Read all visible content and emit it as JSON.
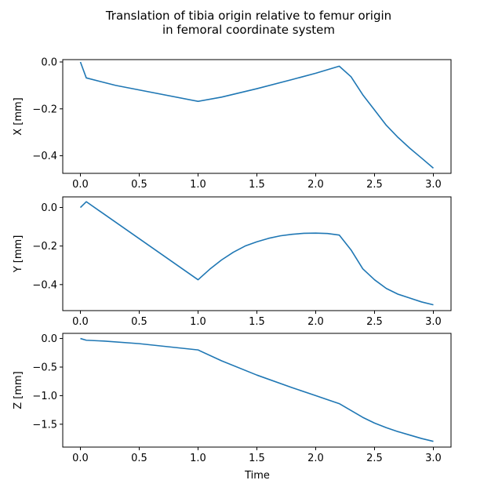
{
  "figure": {
    "title_line1": "Translation of tibia origin relative to femur origin",
    "title_line2": "in femoral coordinate system",
    "xlabel": "Time"
  },
  "chart_data": [
    {
      "type": "line",
      "ylabel": "X [mm]",
      "xlim": [
        -0.15,
        3.15
      ],
      "ylim": [
        -0.475,
        0.01
      ],
      "xticks": [
        0.0,
        0.5,
        1.0,
        1.5,
        2.0,
        2.5,
        3.0
      ],
      "xtick_labels": [
        "0.0",
        "0.5",
        "1.0",
        "1.5",
        "2.0",
        "2.5",
        "3.0"
      ],
      "yticks": [
        0.0,
        -0.2,
        -0.4
      ],
      "ytick_labels": [
        "0.0",
        "−0.2",
        "−0.4"
      ],
      "color": "#1f77b4",
      "series": [
        {
          "x": [
            0.0,
            0.05,
            0.3,
            1.0,
            1.2,
            1.5,
            1.8,
            2.0,
            2.2,
            2.3,
            2.4,
            2.5,
            2.6,
            2.7,
            2.8,
            2.9,
            3.0
          ],
          "y": [
            0.0,
            -0.068,
            -0.1,
            -0.168,
            -0.15,
            -0.114,
            -0.075,
            -0.048,
            -0.018,
            -0.063,
            -0.14,
            -0.205,
            -0.27,
            -0.322,
            -0.368,
            -0.41,
            -0.453
          ]
        }
      ]
    },
    {
      "type": "line",
      "ylabel": "Y [mm]",
      "xlim": [
        -0.15,
        3.15
      ],
      "ylim": [
        -0.535,
        0.055
      ],
      "xticks": [
        0.0,
        0.5,
        1.0,
        1.5,
        2.0,
        2.5,
        3.0
      ],
      "xtick_labels": [
        "0.0",
        "0.5",
        "1.0",
        "1.5",
        "2.0",
        "2.5",
        "3.0"
      ],
      "yticks": [
        0.0,
        -0.2,
        -0.4
      ],
      "ytick_labels": [
        "0.0",
        "−0.2",
        "−0.4"
      ],
      "color": "#1f77b4",
      "series": [
        {
          "x": [
            0.0,
            0.05,
            1.0,
            1.1,
            1.2,
            1.3,
            1.4,
            1.5,
            1.6,
            1.7,
            1.8,
            1.9,
            2.0,
            2.1,
            2.2,
            2.3,
            2.4,
            2.5,
            2.6,
            2.7,
            2.8,
            2.9,
            3.0
          ],
          "y": [
            0.0,
            0.03,
            -0.375,
            -0.32,
            -0.272,
            -0.232,
            -0.2,
            -0.178,
            -0.16,
            -0.147,
            -0.139,
            -0.134,
            -0.133,
            -0.135,
            -0.143,
            -0.22,
            -0.318,
            -0.375,
            -0.42,
            -0.45,
            -0.47,
            -0.49,
            -0.505
          ]
        }
      ]
    },
    {
      "type": "line",
      "ylabel": "Z [mm]",
      "xlim": [
        -0.15,
        3.15
      ],
      "ylim": [
        -1.9,
        0.09
      ],
      "xticks": [
        0.0,
        0.5,
        1.0,
        1.5,
        2.0,
        2.5,
        3.0
      ],
      "xtick_labels": [
        "0.0",
        "0.5",
        "1.0",
        "1.5",
        "2.0",
        "2.5",
        "3.0"
      ],
      "yticks": [
        0.0,
        -0.5,
        -1.0,
        -1.5
      ],
      "ytick_labels": [
        "0.0",
        "−0.5",
        "−1.0",
        "−1.5"
      ],
      "color": "#1f77b4",
      "series": [
        {
          "x": [
            0.0,
            0.05,
            0.2,
            0.5,
            1.0,
            1.2,
            1.5,
            1.8,
            2.0,
            2.2,
            2.3,
            2.4,
            2.5,
            2.6,
            2.7,
            2.8,
            2.9,
            3.0
          ],
          "y": [
            0.0,
            -0.03,
            -0.045,
            -0.09,
            -0.2,
            -0.39,
            -0.64,
            -0.86,
            -1.0,
            -1.14,
            -1.26,
            -1.38,
            -1.48,
            -1.56,
            -1.63,
            -1.69,
            -1.75,
            -1.8
          ]
        }
      ]
    }
  ]
}
